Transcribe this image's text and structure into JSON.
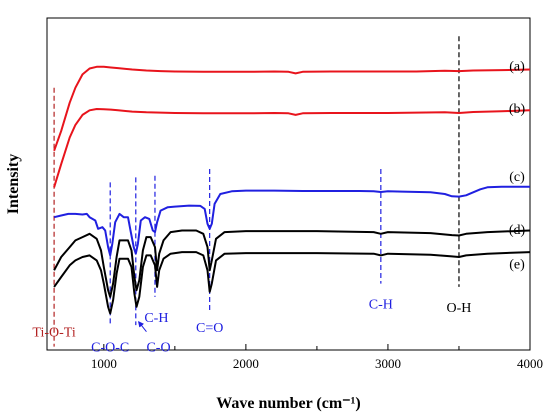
{
  "chart_data": {
    "type": "line",
    "title": "",
    "xlabel": "Wave number (cm⁻¹)",
    "ylabel": "Intensity",
    "xlim": [
      650,
      4000
    ],
    "xticks": [
      1000,
      2000,
      3000,
      4000
    ],
    "yticks_shown": false,
    "grid": false,
    "series": [
      {
        "name": "(a)",
        "color": "#e8141c",
        "x": [
          650,
          700,
          760,
          800,
          850,
          900,
          950,
          1000,
          1050,
          1100,
          1200,
          1300,
          1400,
          1500,
          1700,
          2000,
          2200,
          2300,
          2350,
          2400,
          2600,
          2800,
          3000,
          3200,
          3400,
          3500,
          3600,
          3800,
          4000
        ],
        "y": [
          0.6,
          0.66,
          0.745,
          0.79,
          0.83,
          0.848,
          0.853,
          0.853,
          0.851,
          0.849,
          0.845,
          0.842,
          0.84,
          0.839,
          0.838,
          0.838,
          0.839,
          0.838,
          0.833,
          0.838,
          0.839,
          0.839,
          0.839,
          0.839,
          0.841,
          0.84,
          0.842,
          0.843,
          0.845
        ]
      },
      {
        "name": "(b)",
        "color": "#e8141c",
        "x": [
          650,
          700,
          760,
          800,
          850,
          900,
          950,
          1000,
          1050,
          1100,
          1200,
          1300,
          1400,
          1500,
          1700,
          2000,
          2200,
          2300,
          2350,
          2400,
          2600,
          2800,
          3000,
          3200,
          3400,
          3500,
          3600,
          3800,
          4000
        ],
        "y": [
          0.49,
          0.56,
          0.64,
          0.678,
          0.708,
          0.722,
          0.726,
          0.725,
          0.724,
          0.722,
          0.718,
          0.716,
          0.715,
          0.714,
          0.713,
          0.713,
          0.714,
          0.713,
          0.708,
          0.713,
          0.714,
          0.714,
          0.714,
          0.715,
          0.716,
          0.714,
          0.717,
          0.719,
          0.722
        ]
      },
      {
        "name": "(c)",
        "color": "#2020e0",
        "x": [
          650,
          700,
          750,
          800,
          850,
          880,
          900,
          940,
          960,
          990,
          1010,
          1030,
          1045,
          1060,
          1080,
          1110,
          1140,
          1170,
          1190,
          1210,
          1225,
          1240,
          1260,
          1290,
          1320,
          1345,
          1360,
          1375,
          1400,
          1450,
          1500,
          1600,
          1680,
          1710,
          1730,
          1745,
          1760,
          1780,
          1820,
          1900,
          2000,
          2200,
          2400,
          2600,
          2800,
          2900,
          2950,
          3000,
          3100,
          3300,
          3400,
          3450,
          3500,
          3550,
          3600,
          3650,
          3700,
          3800,
          4000
        ],
        "y": [
          0.4,
          0.405,
          0.41,
          0.41,
          0.408,
          0.41,
          0.4,
          0.39,
          0.365,
          0.37,
          0.36,
          0.31,
          0.285,
          0.32,
          0.385,
          0.41,
          0.4,
          0.4,
          0.355,
          0.31,
          0.29,
          0.32,
          0.39,
          0.4,
          0.395,
          0.36,
          0.355,
          0.385,
          0.42,
          0.43,
          0.432,
          0.435,
          0.434,
          0.425,
          0.38,
          0.365,
          0.38,
          0.44,
          0.47,
          0.478,
          0.48,
          0.48,
          0.479,
          0.479,
          0.479,
          0.478,
          0.476,
          0.478,
          0.477,
          0.475,
          0.47,
          0.463,
          0.462,
          0.466,
          0.475,
          0.484,
          0.49,
          0.492,
          0.492
        ]
      },
      {
        "name": "(d)",
        "color": "#000000",
        "x": [
          650,
          700,
          760,
          800,
          850,
          900,
          950,
          980,
          1000,
          1030,
          1045,
          1065,
          1090,
          1110,
          1140,
          1170,
          1195,
          1215,
          1230,
          1250,
          1275,
          1300,
          1330,
          1360,
          1375,
          1390,
          1420,
          1470,
          1550,
          1650,
          1700,
          1730,
          1745,
          1760,
          1790,
          1850,
          2000,
          2500,
          2900,
          2950,
          3000,
          3300,
          3450,
          3500,
          3550,
          3700,
          4000
        ],
        "y": [
          0.24,
          0.28,
          0.31,
          0.33,
          0.34,
          0.35,
          0.335,
          0.3,
          0.25,
          0.18,
          0.16,
          0.2,
          0.28,
          0.33,
          0.33,
          0.33,
          0.3,
          0.22,
          0.18,
          0.21,
          0.3,
          0.34,
          0.34,
          0.31,
          0.24,
          0.29,
          0.33,
          0.355,
          0.36,
          0.36,
          0.35,
          0.31,
          0.24,
          0.27,
          0.335,
          0.355,
          0.358,
          0.358,
          0.355,
          0.35,
          0.355,
          0.352,
          0.346,
          0.345,
          0.35,
          0.355,
          0.36
        ]
      },
      {
        "name": "(e)",
        "color": "#000000",
        "x": [
          650,
          700,
          760,
          800,
          850,
          900,
          950,
          980,
          1000,
          1030,
          1045,
          1065,
          1090,
          1110,
          1140,
          1170,
          1195,
          1215,
          1230,
          1250,
          1275,
          1300,
          1330,
          1360,
          1375,
          1390,
          1420,
          1470,
          1550,
          1650,
          1700,
          1730,
          1745,
          1760,
          1790,
          1850,
          2000,
          2500,
          2900,
          2950,
          3000,
          3300,
          3450,
          3500,
          3550,
          3700,
          4000
        ],
        "y": [
          0.19,
          0.22,
          0.255,
          0.27,
          0.28,
          0.285,
          0.27,
          0.24,
          0.2,
          0.13,
          0.11,
          0.15,
          0.23,
          0.275,
          0.275,
          0.275,
          0.25,
          0.17,
          0.13,
          0.16,
          0.25,
          0.285,
          0.285,
          0.255,
          0.19,
          0.24,
          0.275,
          0.29,
          0.295,
          0.295,
          0.285,
          0.24,
          0.175,
          0.2,
          0.27,
          0.29,
          0.292,
          0.292,
          0.29,
          0.285,
          0.29,
          0.287,
          0.282,
          0.28,
          0.285,
          0.29,
          0.295
        ]
      }
    ],
    "series_labels": [
      {
        "text": "(a)",
        "y": 0.857
      },
      {
        "text": "(b)",
        "y": 0.729
      },
      {
        "text": "(c)",
        "y": 0.524
      },
      {
        "text": "(d)",
        "y": 0.365
      },
      {
        "text": "(e)",
        "y": 0.261
      }
    ],
    "reference_lines": [
      {
        "x": 650,
        "y_top": 0.79,
        "y_bottom": 0.01,
        "color": "#b22222",
        "dash": true
      },
      {
        "x": 1045,
        "y_top": 0.505,
        "y_bottom": 0.075,
        "color": "#2020e0",
        "dash": true
      },
      {
        "x": 1225,
        "y_top": 0.52,
        "y_bottom": 0.075,
        "color": "#2020e0",
        "dash": true
      },
      {
        "x": 1360,
        "y_top": 0.525,
        "y_bottom": 0.16,
        "color": "#2020e0",
        "dash": true
      },
      {
        "x": 1745,
        "y_top": 0.545,
        "y_bottom": 0.12,
        "color": "#2020e0",
        "dash": true
      },
      {
        "x": 2950,
        "y_top": 0.545,
        "y_bottom": 0.2,
        "color": "#2020e0",
        "dash": true
      },
      {
        "x": 3500,
        "y_top": 0.945,
        "y_bottom": 0.19,
        "color": "#000000",
        "dash": true
      }
    ],
    "annotations": [
      {
        "text": "Ti-O-Ti",
        "x": 650,
        "y": 0.055,
        "color": "#b22222"
      },
      {
        "text": "C-O-C",
        "x": 1045,
        "y": 0.01,
        "color": "#2020e0"
      },
      {
        "text": "C-O",
        "x": 1385,
        "y": 0.01,
        "color": "#2020e0"
      },
      {
        "text": "C-H",
        "x": 1370,
        "y": 0.1,
        "color": "#2020e0"
      },
      {
        "text": "C=O",
        "x": 1745,
        "y": 0.07,
        "color": "#2020e0"
      },
      {
        "text": "C-H",
        "x": 2950,
        "y": 0.14,
        "color": "#2020e0"
      },
      {
        "text": "O-H",
        "x": 3500,
        "y": 0.13,
        "color": "#000000"
      }
    ],
    "arrows": [
      {
        "x1": 1300,
        "y1": 0.055,
        "x2": 1245,
        "y2": 0.085,
        "color": "#2020e0"
      }
    ]
  }
}
